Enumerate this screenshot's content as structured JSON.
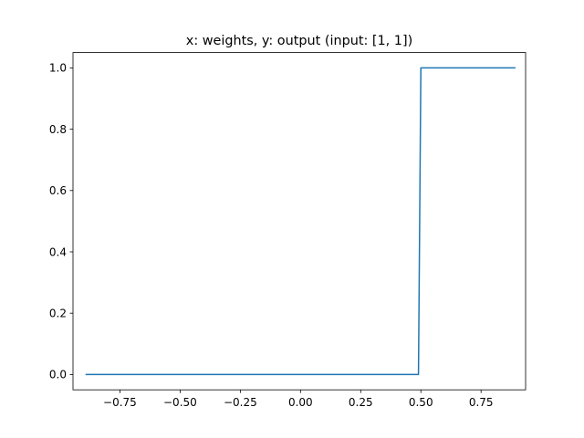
{
  "chart_data": {
    "type": "line",
    "title": "x: weights, y: output (input: [1, 1])",
    "xlabel": "",
    "ylabel": "",
    "xlim": [
      -0.945,
      0.935
    ],
    "ylim": [
      -0.05,
      1.05
    ],
    "grid": false,
    "legend": "none",
    "x_ticks": [
      -0.75,
      -0.5,
      -0.25,
      0.0,
      0.25,
      0.5,
      0.75
    ],
    "x_tick_labels": [
      "−0.75",
      "−0.50",
      "−0.25",
      "0.00",
      "0.25",
      "0.50",
      "0.75"
    ],
    "y_ticks": [
      0.0,
      0.2,
      0.4,
      0.6,
      0.8,
      1.0
    ],
    "y_tick_labels": [
      "0.0",
      "0.2",
      "0.4",
      "0.6",
      "0.8",
      "1.0"
    ],
    "series": [
      {
        "color": "#1f77b4",
        "x": [
          -0.89,
          0.49,
          0.5,
          0.89
        ],
        "y": [
          0,
          0,
          1,
          1
        ]
      }
    ]
  }
}
